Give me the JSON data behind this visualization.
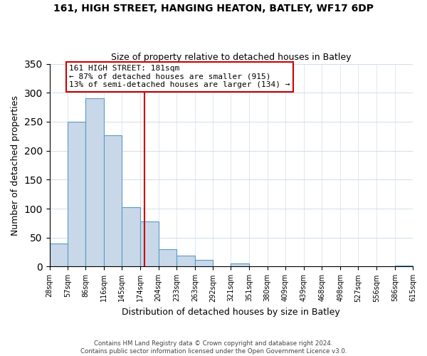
{
  "title": "161, HIGH STREET, HANGING HEATON, BATLEY, WF17 6DP",
  "subtitle": "Size of property relative to detached houses in Batley",
  "xlabel": "Distribution of detached houses by size in Batley",
  "ylabel": "Number of detached properties",
  "bar_color": "#c8d8e8",
  "bar_edge_color": "#5a9ac8",
  "vline_x": 181,
  "vline_color": "#cc0000",
  "annotation_title": "161 HIGH STREET: 181sqm",
  "annotation_line1": "← 87% of detached houses are smaller (915)",
  "annotation_line2": "13% of semi-detached houses are larger (134) →",
  "annotation_box_color": "#ffffff",
  "annotation_box_edge": "#cc0000",
  "bin_edges": [
    28,
    57,
    86,
    116,
    145,
    174,
    204,
    233,
    263,
    292,
    321,
    351,
    380,
    409,
    439,
    468,
    498,
    527,
    556,
    586,
    615
  ],
  "bar_heights": [
    40,
    250,
    291,
    226,
    103,
    78,
    30,
    19,
    11,
    0,
    5,
    0,
    1,
    0,
    0,
    0,
    0,
    0,
    0,
    2
  ],
  "tick_labels": [
    "28sqm",
    "57sqm",
    "86sqm",
    "116sqm",
    "145sqm",
    "174sqm",
    "204sqm",
    "233sqm",
    "263sqm",
    "292sqm",
    "321sqm",
    "351sqm",
    "380sqm",
    "409sqm",
    "439sqm",
    "468sqm",
    "498sqm",
    "527sqm",
    "556sqm",
    "586sqm",
    "615sqm"
  ],
  "ylim": [
    0,
    350
  ],
  "yticks": [
    0,
    50,
    100,
    150,
    200,
    250,
    300,
    350
  ],
  "footer_line1": "Contains HM Land Registry data © Crown copyright and database right 2024.",
  "footer_line2": "Contains public sector information licensed under the Open Government Licence v3.0."
}
